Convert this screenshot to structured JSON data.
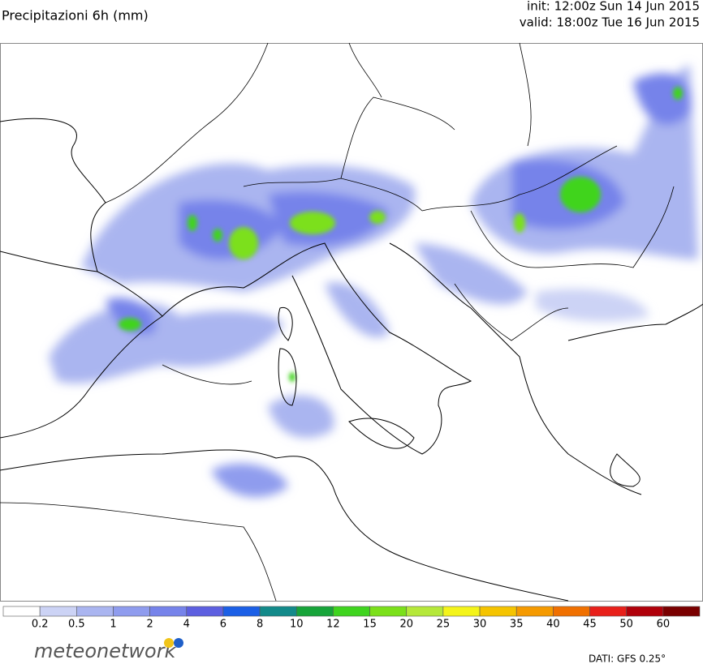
{
  "header": {
    "title": "Precipitazioni 6h (mm)",
    "init": "init: 12:00z Sun 14 Jun 2015",
    "valid": "valid: 18:00z Tue 16 Jun 2015"
  },
  "legend": {
    "thresholds": [
      0.2,
      0.5,
      1,
      2,
      4,
      6,
      8,
      10,
      12,
      15,
      20,
      25,
      30,
      35,
      40,
      45,
      50,
      60
    ],
    "colors": [
      "#ffffff",
      "#ccd3f5",
      "#aab5f0",
      "#8f9cee",
      "#7683ea",
      "#5d5fe0",
      "#1b5fe6",
      "#138a8a",
      "#17a43a",
      "#3fd41f",
      "#7be01a",
      "#b5e83a",
      "#f4f41a",
      "#f5c400",
      "#f59a00",
      "#f07000",
      "#e8201a",
      "#b0000a",
      "#7a0000"
    ]
  },
  "footer": {
    "logo": "meteonetwork",
    "source": "DATI: GFS 0.25°"
  }
}
